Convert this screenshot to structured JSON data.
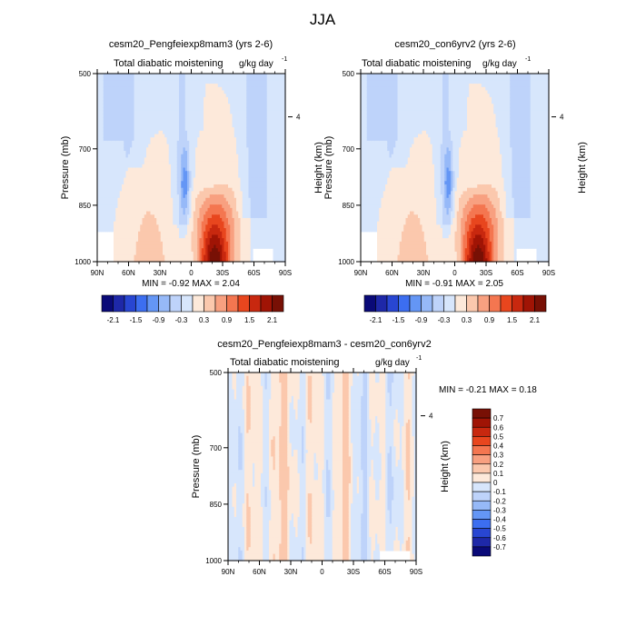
{
  "figure_title": "JJA",
  "panel_left": {
    "title": "cesm20_Pengfeiexp8mam3 (yrs 2-6)",
    "variable": "Total diabatic moistening",
    "units_base": "g/kg day",
    "units_exp": "-1",
    "stats": "MIN =  -0.92  MAX =  2.04"
  },
  "panel_right": {
    "title": "cesm20_con6yrv2 (yrs 2-6)",
    "variable": "Total diabatic moistening",
    "units_base": "g/kg day",
    "units_exp": "-1",
    "stats": "MIN =  -0.91  MAX =  2.05"
  },
  "panel_diff": {
    "title": "cesm20_Pengfeiexp8mam3 - cesm20_con6yrv2",
    "variable": "Total diabatic moistening",
    "units_base": "g/kg day",
    "units_exp": "-1",
    "stats": "MIN =  -0.21  MAX =   0.18"
  },
  "colors": {
    "diverging": [
      "#0a0a78",
      "#1e28a8",
      "#2846d2",
      "#3c6ef0",
      "#6496f5",
      "#96b9f8",
      "#bed3fa",
      "#d7e6fc",
      "#fde9da",
      "#fbc8ad",
      "#f8a080",
      "#f47650",
      "#e8461e",
      "#c8280f",
      "#a01405",
      "#781005"
    ],
    "frame": "#000000"
  },
  "chart_data": [
    {
      "type": "heatmap",
      "name": "cesm20_Pengfeiexp8mam3 (yrs 2-6)",
      "x_tick_labels": [
        "90N",
        "60N",
        "30N",
        "0",
        "30S",
        "60S",
        "90S"
      ],
      "x_ticks": [
        90,
        60,
        30,
        0,
        -30,
        -60,
        -90
      ],
      "xlim": [
        90,
        -90
      ],
      "ylabel": "Pressure (mb)",
      "y_ticks": [
        500,
        700,
        850,
        1000
      ],
      "ylim": [
        1000,
        500
      ],
      "y2label": "Height (km)",
      "y2_ticks_km": [
        4
      ],
      "y2_tick_pressure": [
        615
      ],
      "min": -0.92,
      "max": 2.04,
      "features": [
        {
          "kind": "moistening-max",
          "lat": -22,
          "p_bottom": 1000,
          "p_top": 790,
          "peak": 2.04
        },
        {
          "kind": "drying-min",
          "lat": 6,
          "p_bottom": 900,
          "p_top": 690,
          "peak": -0.92
        },
        {
          "kind": "weak-drying-band",
          "lat": -62,
          "p_bottom": 880,
          "p_top": 500,
          "peak": -0.45
        },
        {
          "kind": "weak-moistening-plume",
          "lat": 42,
          "p_bottom": 1000,
          "p_top": 650,
          "peak": 0.5
        }
      ]
    },
    {
      "type": "heatmap",
      "name": "cesm20_con6yrv2 (yrs 2-6)",
      "x_tick_labels": [
        "90N",
        "60N",
        "30N",
        "0",
        "30S",
        "60S",
        "90S"
      ],
      "x_ticks": [
        90,
        60,
        30,
        0,
        -30,
        -60,
        -90
      ],
      "xlim": [
        90,
        -90
      ],
      "ylabel": "Pressure (mb)",
      "y_ticks": [
        500,
        700,
        850,
        1000
      ],
      "ylim": [
        1000,
        500
      ],
      "y2label": "Height (km)",
      "y2_ticks_km": [
        4
      ],
      "y2_tick_pressure": [
        615
      ],
      "min": -0.91,
      "max": 2.05,
      "features": [
        {
          "kind": "moistening-max",
          "lat": -22,
          "p_bottom": 1000,
          "p_top": 790,
          "peak": 2.05
        },
        {
          "kind": "drying-min",
          "lat": 6,
          "p_bottom": 900,
          "p_top": 690,
          "peak": -0.91
        },
        {
          "kind": "weak-drying-band",
          "lat": -62,
          "p_bottom": 880,
          "p_top": 500,
          "peak": -0.45
        },
        {
          "kind": "weak-moistening-plume",
          "lat": 42,
          "p_bottom": 1000,
          "p_top": 650,
          "peak": 0.5
        }
      ]
    },
    {
      "type": "heatmap",
      "name": "cesm20_Pengfeiexp8mam3 - cesm20_con6yrv2",
      "x_tick_labels": [
        "90N",
        "60N",
        "30N",
        "0",
        "30S",
        "60S",
        "90S"
      ],
      "x_ticks": [
        90,
        60,
        30,
        0,
        -30,
        -60,
        -90
      ],
      "xlim": [
        90,
        -90
      ],
      "ylabel": "Pressure (mb)",
      "y_ticks": [
        500,
        700,
        850,
        1000
      ],
      "ylim": [
        1000,
        500
      ],
      "y2label": "Height (km)",
      "y2_ticks_km": [
        4
      ],
      "y2_tick_pressure": [
        615
      ],
      "min": -0.21,
      "max": 0.18
    }
  ],
  "colorbar_main": {
    "labels": [
      "-2.1",
      "-1.5",
      "-0.9",
      "-0.3",
      "0.3",
      "0.9",
      "1.5",
      "2.1"
    ],
    "levels": [
      -2.1,
      -1.8,
      -1.5,
      -1.2,
      -0.9,
      -0.6,
      -0.3,
      0,
      0.3,
      0.6,
      0.9,
      1.2,
      1.5,
      1.8,
      2.1
    ]
  },
  "colorbar_diff": {
    "labels": [
      "0.7",
      "0.6",
      "0.5",
      "0.4",
      "0.3",
      "0.2",
      "0.1",
      "0",
      "-0.1",
      "-0.2",
      "-0.3",
      "-0.4",
      "-0.5",
      "-0.6",
      "-0.7"
    ]
  }
}
